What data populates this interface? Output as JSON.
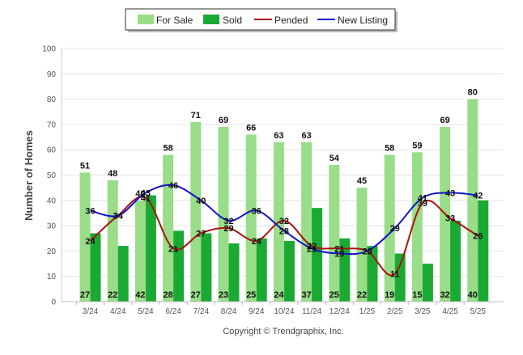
{
  "chart_data": {
    "type": "bar",
    "categories": [
      "3/24",
      "4/24",
      "5/24",
      "6/24",
      "7/24",
      "8/24",
      "9/24",
      "10/24",
      "11/24",
      "12/24",
      "1/25",
      "2/25",
      "3/25",
      "4/25",
      "5/25"
    ],
    "series": [
      {
        "name": "For Sale",
        "kind": "bar",
        "color": "#99dd88",
        "values": [
          51,
          48,
          40,
          58,
          71,
          69,
          66,
          63,
          63,
          54,
          45,
          58,
          59,
          69,
          80
        ]
      },
      {
        "name": "Sold",
        "kind": "bar",
        "color": "#1aaa33",
        "values": [
          27,
          22,
          42,
          28,
          27,
          23,
          25,
          24,
          37,
          25,
          22,
          19,
          15,
          32,
          40
        ]
      },
      {
        "name": "Pended",
        "kind": "line",
        "color": "#aa1111",
        "values": [
          24,
          34,
          41,
          21,
          27,
          29,
          24,
          32,
          22,
          21,
          20,
          11,
          39,
          33,
          26
        ]
      },
      {
        "name": "New Listing",
        "kind": "line",
        "color": "#1111cc",
        "values": [
          36,
          34,
          43,
          46,
          40,
          32,
          36,
          28,
          21,
          19,
          20,
          29,
          41,
          43,
          42
        ]
      }
    ],
    "ylabel": "Number of Homes",
    "xlabel": "",
    "ylim": [
      0,
      100
    ],
    "yticks": [
      0,
      10,
      20,
      30,
      40,
      50,
      60,
      70,
      80,
      90,
      100
    ],
    "grid": true,
    "legend": "top-center",
    "credit": "Copyright © Trendgraphix, Inc."
  }
}
